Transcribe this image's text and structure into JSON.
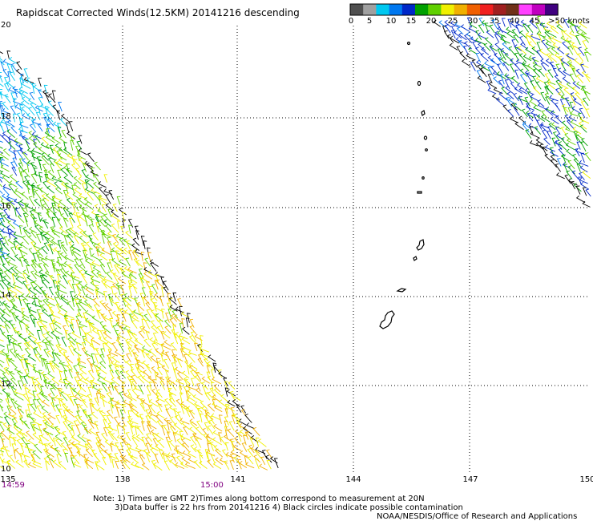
{
  "title": "Rapidscat Corrected Winds(12.5KM) 20141216 descending",
  "colorbar": {
    "colors": [
      "#505050",
      "#a0a0a0",
      "#00c8f0",
      "#0078f0",
      "#0028c8",
      "#00a000",
      "#60d000",
      "#f0f000",
      "#f0b000",
      "#f06000",
      "#f02020",
      "#a02020",
      "#703018",
      "#ff40ff",
      "#c000c0",
      "#400080"
    ],
    "labels": [
      "0",
      "5",
      "10",
      "15",
      "20",
      "25",
      "30",
      "35",
      "40",
      "45",
      ">50 knots"
    ]
  },
  "map": {
    "lat_labels": [
      "20",
      "18",
      "16",
      "14",
      "12",
      "10"
    ],
    "lon_labels": [
      "135",
      "138",
      "141",
      "144",
      "147",
      "150"
    ],
    "lat_range": [
      10,
      20
    ],
    "lon_range": [
      135,
      150
    ],
    "grid": "dotted"
  },
  "times": [
    "14:59",
    "15:00"
  ],
  "notes": [
    "Note: 1) Times are GMT 2)Times along bottom correspond to measurement at 20N",
    "3)Data buffer is 22 hrs from 20141216 4) Black circles indicate possible contamination"
  ],
  "credit": "NOAA/NESDIS/Office of Research and Applications"
}
